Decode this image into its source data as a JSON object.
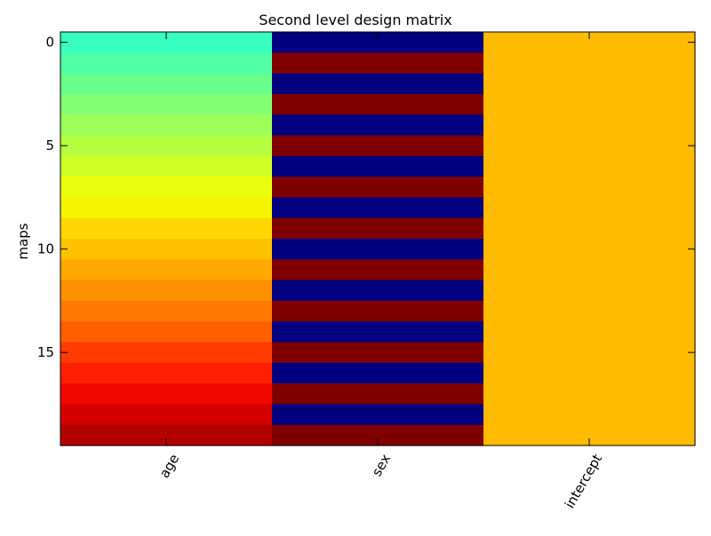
{
  "chart_data": {
    "type": "heatmap",
    "title": "Second level design matrix",
    "ylabel": "maps",
    "xlabel": "",
    "columns": [
      "age",
      "sex",
      "intercept"
    ],
    "y_ticks": [
      0,
      5,
      10,
      15
    ],
    "ylim": [
      19.5,
      -0.5
    ],
    "n_rows": 20,
    "grid": false,
    "colormap": "jet",
    "colorbar": false,
    "cells": [
      {
        "column": "age",
        "colors": [
          "#36ffc0",
          "#50ffa6",
          "#69ff8d",
          "#83ff73",
          "#9dff5a",
          "#b6ff40",
          "#d0ff26",
          "#eaff0d",
          "#f6f400",
          "#ffd700",
          "#ffc200",
          "#ffa900",
          "#ff9000",
          "#ff7a00",
          "#ff5f00",
          "#ff3b00",
          "#ff1f00",
          "#f10700",
          "#d40000",
          "#b20000"
        ]
      },
      {
        "column": "sex",
        "colors": [
          "#000080",
          "#800000",
          "#000080",
          "#800000",
          "#000080",
          "#800000",
          "#000080",
          "#800000",
          "#000080",
          "#800000",
          "#000080",
          "#800000",
          "#000080",
          "#800000",
          "#000080",
          "#800000",
          "#000080",
          "#800000",
          "#000080",
          "#800000"
        ]
      },
      {
        "column": "intercept",
        "colors": [
          "#ffbb00",
          "#ffbb00",
          "#ffbb00",
          "#ffbb00",
          "#ffbb00",
          "#ffbb00",
          "#ffbb00",
          "#ffbb00",
          "#ffbb00",
          "#ffbb00",
          "#ffbb00",
          "#ffbb00",
          "#ffbb00",
          "#ffbb00",
          "#ffbb00",
          "#ffbb00",
          "#ffbb00",
          "#ffbb00",
          "#ffbb00",
          "#ffbb00"
        ]
      }
    ]
  }
}
